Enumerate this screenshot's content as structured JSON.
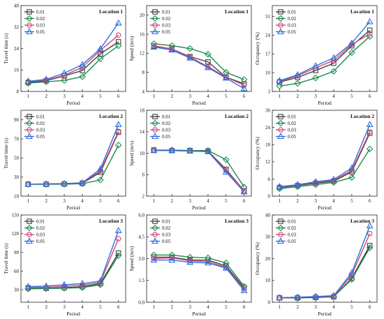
{
  "figure": {
    "legend": [
      "0.01",
      "0.02",
      "0.03",
      "0.05"
    ],
    "colors": [
      "#404040",
      "#1e8c4e",
      "#d24a72",
      "#2f6ee0"
    ],
    "markers": [
      "square",
      "diamond",
      "circle",
      "triangle"
    ]
  },
  "chart_data": [
    {
      "type": "line",
      "title": "Location 1",
      "xlabel": "Period",
      "ylabel": "Travel time (s)",
      "x": [
        1,
        2,
        3,
        4,
        5,
        6
      ],
      "xticks": [
        "1",
        "2",
        "3",
        "4",
        "5",
        "6"
      ],
      "ylim": [
        8,
        40
      ],
      "yticks": [
        8,
        16,
        24,
        32,
        40
      ],
      "series": [
        {
          "name": "0.01",
          "values": [
            11.3,
            12.0,
            13.8,
            15.8,
            22.0,
            26.5
          ]
        },
        {
          "name": "0.02",
          "values": [
            11.1,
            11.6,
            12.1,
            13.5,
            20.2,
            25.0
          ]
        },
        {
          "name": "0.03",
          "values": [
            11.6,
            12.2,
            14.0,
            17.0,
            23.3,
            29.0
          ]
        },
        {
          "name": "0.05",
          "values": [
            11.8,
            12.5,
            14.8,
            18.0,
            23.9,
            33.5
          ]
        }
      ]
    },
    {
      "type": "line",
      "title": "Location 1",
      "xlabel": "Period",
      "ylabel": "Speed (m/s)",
      "x": [
        1,
        2,
        3,
        4,
        5,
        6
      ],
      "xticks": [
        "1",
        "2",
        "3",
        "4",
        "5",
        "6"
      ],
      "ylim": [
        4,
        22
      ],
      "yticks": [
        4,
        8,
        12,
        16,
        20
      ],
      "series": [
        {
          "name": "0.01",
          "values": [
            13.5,
            12.9,
            11.3,
            10.2,
            7.0,
            5.6
          ]
        },
        {
          "name": "0.02",
          "values": [
            14.0,
            13.6,
            13.0,
            11.8,
            8.0,
            6.5
          ]
        },
        {
          "name": "0.03",
          "values": [
            13.6,
            12.9,
            11.2,
            9.2,
            7.0,
            5.3
          ]
        },
        {
          "name": "0.05",
          "values": [
            13.3,
            12.7,
            11.0,
            9.0,
            6.8,
            4.6
          ]
        }
      ]
    },
    {
      "type": "line",
      "title": "Location 1",
      "xlabel": "Period",
      "ylabel": "Occupancy (%)",
      "x": [
        1,
        2,
        3,
        4,
        5,
        6
      ],
      "xticks": [
        "1",
        "2",
        "3",
        "4",
        "5",
        "6"
      ],
      "ylim": [
        3,
        35
      ],
      "yticks": [
        3,
        10,
        17,
        24,
        31
      ],
      "series": [
        {
          "name": "0.01",
          "values": [
            6.5,
            8.2,
            10.8,
            13.5,
            20.0,
            25.8
          ]
        },
        {
          "name": "0.02",
          "values": [
            5.0,
            6.0,
            8.0,
            10.5,
            17.5,
            23.5
          ]
        },
        {
          "name": "0.03",
          "values": [
            6.8,
            8.8,
            11.8,
            14.5,
            20.5,
            24.5
          ]
        },
        {
          "name": "0.05",
          "values": [
            7.0,
            9.2,
            12.5,
            15.5,
            21.0,
            29.0
          ]
        }
      ]
    },
    {
      "type": "line",
      "title": "Location 2",
      "xlabel": "Period",
      "ylabel": "Travel time (s)",
      "x": [
        1,
        2,
        3,
        4,
        5,
        6
      ],
      "xticks": [
        "1",
        "2",
        "3",
        "4",
        "5",
        "6"
      ],
      "ylim": [
        10,
        100
      ],
      "yticks": [
        10,
        30,
        50,
        70,
        90
      ],
      "series": [
        {
          "name": "0.01",
          "values": [
            22.5,
            22.5,
            22.8,
            23.5,
            35.0,
            77.0
          ]
        },
        {
          "name": "0.02",
          "values": [
            22.5,
            22.5,
            22.5,
            23.0,
            27.0,
            63.5
          ]
        },
        {
          "name": "0.03",
          "values": [
            22.5,
            22.8,
            23.0,
            23.8,
            36.5,
            78.0
          ]
        },
        {
          "name": "0.05",
          "values": [
            22.6,
            22.8,
            23.2,
            24.0,
            38.5,
            85.0
          ]
        }
      ]
    },
    {
      "type": "line",
      "title": "Location 2",
      "xlabel": "Period",
      "ylabel": "Speed (m/s)",
      "x": [
        1,
        2,
        3,
        4,
        5,
        6
      ],
      "xticks": [
        "1",
        "2",
        "3",
        "4",
        "5",
        "6"
      ],
      "ylim": [
        2,
        18
      ],
      "yticks": [
        2,
        6,
        10,
        14,
        18
      ],
      "series": [
        {
          "name": "0.01",
          "values": [
            10.6,
            10.5,
            10.5,
            10.4,
            7.0,
            3.0
          ]
        },
        {
          "name": "0.02",
          "values": [
            10.6,
            10.6,
            10.5,
            10.5,
            8.8,
            3.7
          ]
        },
        {
          "name": "0.03",
          "values": [
            10.6,
            10.5,
            10.4,
            10.3,
            6.8,
            3.0
          ]
        },
        {
          "name": "0.05",
          "values": [
            10.5,
            10.5,
            10.4,
            10.3,
            6.5,
            2.8
          ]
        }
      ]
    },
    {
      "type": "line",
      "title": "Location 2",
      "xlabel": "Period",
      "ylabel": "Occupancy (%)",
      "x": [
        1,
        2,
        3,
        4,
        5,
        6
      ],
      "xticks": [
        "1",
        "2",
        "3",
        "4",
        "5",
        "6"
      ],
      "ylim": [
        0,
        30
      ],
      "yticks": [
        0,
        6,
        12,
        18,
        24,
        30
      ],
      "series": [
        {
          "name": "0.01",
          "values": [
            3.0,
            3.7,
            4.5,
            5.2,
            8.5,
            22.0
          ]
        },
        {
          "name": "0.02",
          "values": [
            2.6,
            3.3,
            4.0,
            4.8,
            6.5,
            16.5
          ]
        },
        {
          "name": "0.03",
          "values": [
            3.2,
            3.9,
            4.8,
            5.5,
            9.0,
            22.5
          ]
        },
        {
          "name": "0.05",
          "values": [
            3.3,
            4.0,
            5.0,
            5.8,
            9.8,
            25.0
          ]
        }
      ]
    },
    {
      "type": "line",
      "title": "Location 3",
      "xlabel": "Period",
      "ylabel": "Travel time (s)",
      "x": [
        1,
        2,
        3,
        4,
        5,
        6
      ],
      "xticks": [
        "1",
        "2",
        "3",
        "4",
        "5",
        "6"
      ],
      "ylim": [
        10,
        150
      ],
      "yticks": [
        30,
        60,
        90,
        120,
        150
      ],
      "series": [
        {
          "name": "0.01",
          "values": [
            33.0,
            32.5,
            33.5,
            35.0,
            40.0,
            89.0
          ]
        },
        {
          "name": "0.02",
          "values": [
            31.5,
            32.0,
            32.5,
            33.5,
            38.0,
            85.0
          ]
        },
        {
          "name": "0.03",
          "values": [
            33.5,
            34.0,
            35.5,
            37.5,
            42.0,
            112.0
          ]
        },
        {
          "name": "0.05",
          "values": [
            35.0,
            36.0,
            38.0,
            40.0,
            44.0,
            125.0
          ]
        }
      ]
    },
    {
      "type": "line",
      "title": "Location 3",
      "xlabel": "Period",
      "ylabel": "Speed (m/s)",
      "x": [
        1,
        2,
        3,
        4,
        5,
        6
      ],
      "xticks": [
        "1",
        "2",
        "3",
        "4",
        "5",
        "6"
      ],
      "ylim": [
        0,
        6
      ],
      "yticks": [
        0.0,
        1.5,
        3.0,
        4.5,
        6.0
      ],
      "ytick_labels": [
        "0.0",
        "1.5",
        "3.0",
        "4.5",
        "6.0"
      ],
      "series": [
        {
          "name": "0.01",
          "values": [
            3.1,
            3.1,
            2.9,
            2.9,
            2.5,
            1.0
          ]
        },
        {
          "name": "0.02",
          "values": [
            3.25,
            3.25,
            3.1,
            3.05,
            2.7,
            1.1
          ]
        },
        {
          "name": "0.03",
          "values": [
            3.0,
            3.05,
            2.85,
            2.8,
            2.4,
            0.9
          ]
        },
        {
          "name": "0.05",
          "values": [
            2.9,
            2.9,
            2.75,
            2.7,
            2.35,
            0.8
          ]
        }
      ]
    },
    {
      "type": "line",
      "title": "Location 3",
      "xlabel": "Period",
      "ylabel": "Occupancy (%)",
      "x": [
        1,
        2,
        3,
        4,
        5,
        6
      ],
      "xticks": [
        "1",
        "2",
        "3",
        "4",
        "5",
        "6"
      ],
      "ylim": [
        0,
        40
      ],
      "yticks": [
        0,
        10,
        20,
        30,
        40
      ],
      "series": [
        {
          "name": "0.01",
          "values": [
            2.0,
            2.0,
            2.2,
            2.5,
            11.0,
            26.0
          ]
        },
        {
          "name": "0.02",
          "values": [
            2.0,
            2.3,
            2.5,
            2.6,
            10.5,
            25.0
          ]
        },
        {
          "name": "0.03",
          "values": [
            2.0,
            2.2,
            2.5,
            2.8,
            12.5,
            31.5
          ]
        },
        {
          "name": "0.05",
          "values": [
            2.1,
            2.3,
            2.6,
            3.0,
            13.5,
            35.0
          ]
        }
      ]
    }
  ]
}
